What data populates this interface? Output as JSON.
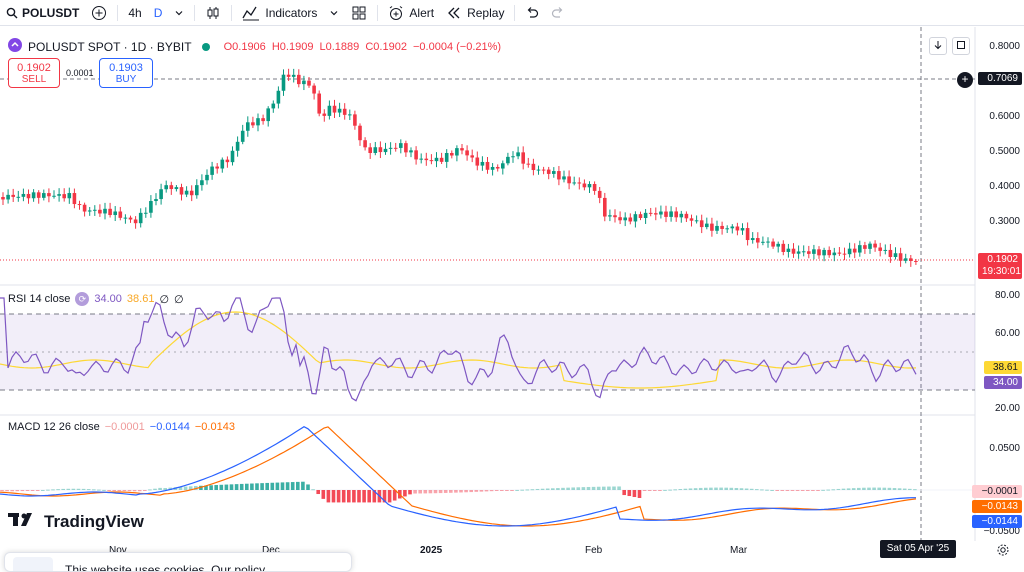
{
  "toolbar": {
    "symbol": "POLUSDT",
    "tf_hour": "4h",
    "tf_day": "D",
    "indicators_label": "Indicators",
    "alert_label": "Alert",
    "replay_label": "Replay"
  },
  "legend": {
    "title": "POLUSDT SPOT · 1D · BYBIT",
    "open": "O0.1906",
    "high": "H0.1909",
    "low": "L0.1889",
    "close": "C0.1902",
    "change": "−0.0004 (−0.21%)"
  },
  "trade": {
    "sell_price": "0.1902",
    "sell_label": "SELL",
    "spread": "0.0001",
    "buy_price": "0.1903",
    "buy_label": "BUY"
  },
  "price_axis": {
    "ticks": [
      "0.8000",
      "0.7069",
      "0.6000",
      "0.5000",
      "0.4000",
      "0.3000"
    ],
    "crosshair_price": "0.7069",
    "last_price": "0.1902",
    "countdown": "19:30:01"
  },
  "rsi": {
    "label": "RSI 14 close",
    "value_a": "34.00",
    "value_b": "38.61",
    "empty_a": "∅",
    "empty_b": "∅",
    "ticks": [
      "80.00",
      "60.00",
      "20.00"
    ],
    "badge_ma": "38.61",
    "badge_rsi": "34.00"
  },
  "macd": {
    "label": "MACD 12 26 close",
    "hist": "−0.0001",
    "macd": "−0.0144",
    "signal": "−0.0143",
    "ticks": [
      "0.0500",
      "−0.0500"
    ],
    "badge_hist": "−0.0001",
    "badge_signal": "−0.0143",
    "badge_macd": "−0.0144"
  },
  "time_axis": {
    "labels": [
      "Nov",
      "Dec",
      "2025",
      "Feb",
      "Mar"
    ],
    "crosshair_date": "Sat 05 Apr '25"
  },
  "branding": {
    "logo_text": "TradingView"
  },
  "popup": {
    "text": "This website uses cookies. Our policy"
  },
  "colors": {
    "up": "#089981",
    "down": "#f23645",
    "rsi_line": "#7e57c2",
    "rsi_ma": "#fdd835",
    "macd_line": "#2962ff",
    "signal_line": "#ff6d00",
    "accent": "#2962ff"
  }
}
